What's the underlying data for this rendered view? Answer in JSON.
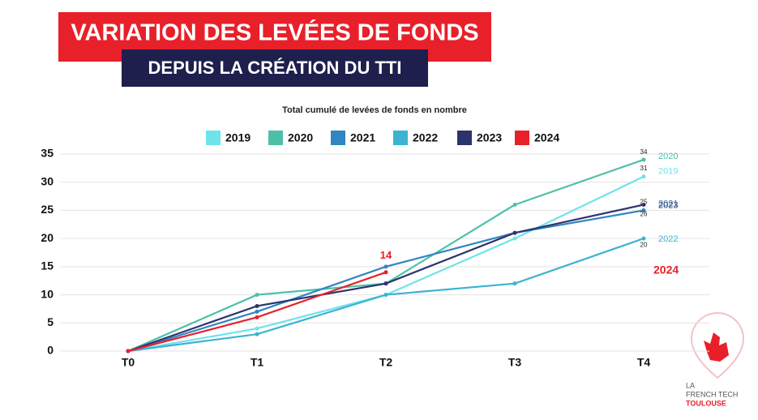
{
  "header": {
    "title": "VARIATION DES LEVÉES DE FONDS",
    "subtitle": "DEPUIS LA CRÉATION DU TTI"
  },
  "chart_data": {
    "type": "line",
    "title": "Total cumulé de levées de fonds en nombre",
    "categories": [
      "T0",
      "T1",
      "T2",
      "T3",
      "T4"
    ],
    "series": [
      {
        "name": "2019",
        "color": "#6fe3ea",
        "values": [
          0,
          4,
          10,
          20,
          31
        ]
      },
      {
        "name": "2020",
        "color": "#4dbfa9",
        "values": [
          0,
          10,
          12,
          26,
          34
        ]
      },
      {
        "name": "2021",
        "color": "#2f86c0",
        "values": [
          0,
          7,
          15,
          21,
          25
        ]
      },
      {
        "name": "2022",
        "color": "#3db3d3",
        "values": [
          0,
          3,
          10,
          12,
          20
        ]
      },
      {
        "name": "2023",
        "color": "#2c346e",
        "values": [
          0,
          8,
          12,
          21,
          26
        ]
      },
      {
        "name": "2024",
        "color": "#e8202a",
        "values": [
          0,
          6,
          14,
          null,
          null
        ]
      }
    ],
    "ylim": [
      0,
      35
    ],
    "yticks": [
      0,
      5,
      10,
      15,
      20,
      25,
      30,
      35
    ],
    "grid": true,
    "legend": "top"
  },
  "logo": {
    "line1": "LA",
    "line2": "FRENCH TECH",
    "line3": "TOULOUSE"
  }
}
